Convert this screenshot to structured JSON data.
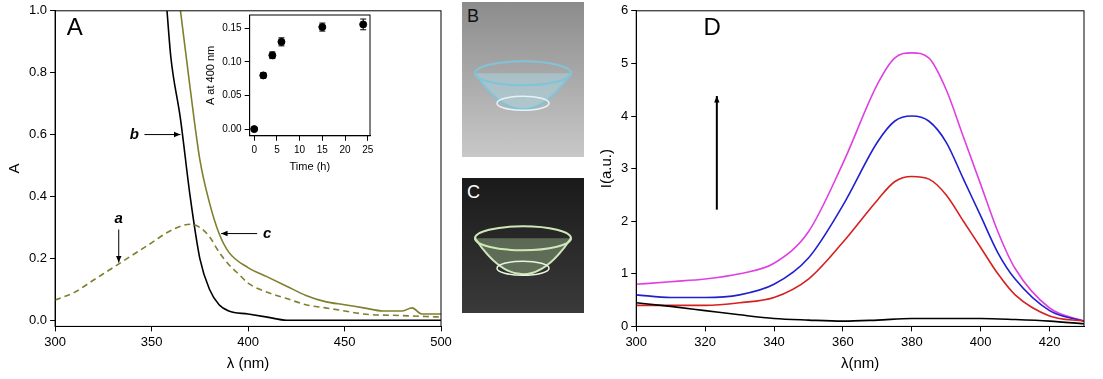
{
  "chart_data": [
    {
      "type": "line",
      "label": "A",
      "x_label": "λ (nm)",
      "y_label": "A",
      "xlim": [
        300,
        500
      ],
      "xticks": [
        300,
        350,
        400,
        450,
        500
      ],
      "ylim": [
        -0.02,
        1.0
      ],
      "yticks": [
        {
          "value": 0,
          "label": "0.0"
        },
        {
          "value": 0.2,
          "label": "0.2"
        },
        {
          "value": 0.4,
          "label": "0.4"
        },
        {
          "value": 0.6,
          "label": "0.6"
        },
        {
          "value": 0.8,
          "label": "0.8"
        },
        {
          "value": 1.0,
          "label": "1.0"
        }
      ],
      "grid": false,
      "series": [
        {
          "color": "#7f7f2f",
          "line_style": "dashed",
          "x": [
            300,
            310,
            320,
            330,
            340,
            350,
            360,
            370,
            375,
            380,
            385,
            390,
            395,
            400,
            410,
            420,
            430,
            440,
            450,
            460,
            480,
            500
          ],
          "values": [
            0.065,
            0.09,
            0.13,
            0.17,
            0.21,
            0.25,
            0.29,
            0.31,
            0.3,
            0.27,
            0.22,
            0.18,
            0.15,
            0.12,
            0.09,
            0.07,
            0.05,
            0.04,
            0.03,
            0.02,
            0.015,
            0.01
          ]
        },
        {
          "color": "#000000",
          "line_style": "solid",
          "x": [
            358,
            360,
            365,
            370,
            375,
            380,
            385,
            390,
            400,
            410,
            420,
            450,
            500
          ],
          "values": [
            1.0,
            0.85,
            0.65,
            0.4,
            0.2,
            0.1,
            0.05,
            0.03,
            0.02,
            0.01,
            0.0,
            0.0,
            0.0
          ]
        },
        {
          "color": "#7f7f2f",
          "line_style": "solid",
          "x": [
            365,
            370,
            375,
            380,
            385,
            390,
            400,
            410,
            420,
            430,
            440,
            450,
            460,
            470,
            480,
            485,
            490,
            500
          ],
          "values": [
            1.0,
            0.75,
            0.52,
            0.38,
            0.28,
            0.22,
            0.17,
            0.14,
            0.11,
            0.08,
            0.06,
            0.05,
            0.04,
            0.03,
            0.03,
            0.04,
            0.02,
            0.02
          ]
        }
      ],
      "annotations": [
        {
          "text": "a",
          "x": 333,
          "y": 0.18
        },
        {
          "text": "b",
          "x": 366,
          "y": 0.6
        },
        {
          "text": "c",
          "x": 385,
          "y": 0.28
        }
      ],
      "inset": {
        "type": "scatter",
        "x_label": "Time (h)",
        "y_label": "A at 400 nm",
        "xlim": [
          -1,
          25.5
        ],
        "xticks": [
          0,
          5,
          10,
          15,
          20,
          25
        ],
        "ylim": [
          -0.01,
          0.17
        ],
        "yticks": [
          {
            "value": 0,
            "label": "0.00"
          },
          {
            "value": 0.05,
            "label": "0.05"
          },
          {
            "value": 0.1,
            "label": "0.10"
          },
          {
            "value": 0.15,
            "label": "0.15"
          }
        ],
        "grid": false,
        "series": [
          {
            "color": "#000000",
            "marker": "circle",
            "x": [
              0,
              2,
              4,
              6,
              15,
              24
            ],
            "values": [
              0,
              0.08,
              0.11,
              0.13,
              0.152,
              0.156
            ],
            "errors": [
              0.002,
              0.004,
              0.005,
              0.006,
              0.006,
              0.008
            ]
          }
        ]
      }
    },
    {
      "type": "line",
      "label": "D",
      "x_label": "λ(nm)",
      "y_label": "I(a.u.)",
      "xlim": [
        300,
        430
      ],
      "xticks": [
        300,
        320,
        340,
        360,
        380,
        400,
        420
      ],
      "ylim": [
        0,
        6
      ],
      "yticks": [
        0,
        1,
        2,
        3,
        4,
        5,
        6
      ],
      "grid": false,
      "series": [
        {
          "color": "#000000",
          "line_style": "solid",
          "x": [
            300,
            310,
            320,
            330,
            340,
            350,
            360,
            370,
            380,
            390,
            400,
            410,
            420,
            430
          ],
          "values": [
            0.45,
            0.38,
            0.3,
            0.22,
            0.15,
            0.12,
            0.1,
            0.12,
            0.15,
            0.15,
            0.15,
            0.13,
            0.1,
            0.05
          ]
        },
        {
          "color": "#d62020",
          "line_style": "solid",
          "x": [
            300,
            310,
            320,
            330,
            340,
            350,
            360,
            370,
            375,
            380,
            385,
            390,
            395,
            400,
            405,
            410,
            420,
            430
          ],
          "values": [
            0.4,
            0.4,
            0.4,
            0.45,
            0.55,
            0.9,
            1.6,
            2.4,
            2.75,
            2.85,
            2.8,
            2.5,
            2.0,
            1.5,
            1.0,
            0.6,
            0.2,
            0.1
          ]
        },
        {
          "color": "#2020d0",
          "line_style": "solid",
          "x": [
            300,
            310,
            320,
            330,
            340,
            350,
            360,
            370,
            375,
            380,
            385,
            390,
            395,
            400,
            405,
            410,
            420,
            430
          ],
          "values": [
            0.6,
            0.55,
            0.55,
            0.6,
            0.8,
            1.3,
            2.3,
            3.5,
            3.9,
            4.0,
            3.9,
            3.5,
            2.8,
            2.1,
            1.4,
            0.9,
            0.3,
            0.1
          ]
        },
        {
          "color": "#e040e0",
          "line_style": "solid",
          "x": [
            300,
            310,
            320,
            330,
            340,
            350,
            360,
            370,
            375,
            380,
            385,
            390,
            395,
            400,
            405,
            410,
            420,
            430
          ],
          "values": [
            0.8,
            0.85,
            0.9,
            1.0,
            1.2,
            1.8,
            3.1,
            4.6,
            5.1,
            5.2,
            5.1,
            4.5,
            3.6,
            2.7,
            1.8,
            1.1,
            0.35,
            0.1
          ]
        }
      ]
    }
  ],
  "photos": [
    {
      "label": "B"
    },
    {
      "label": "C"
    }
  ]
}
